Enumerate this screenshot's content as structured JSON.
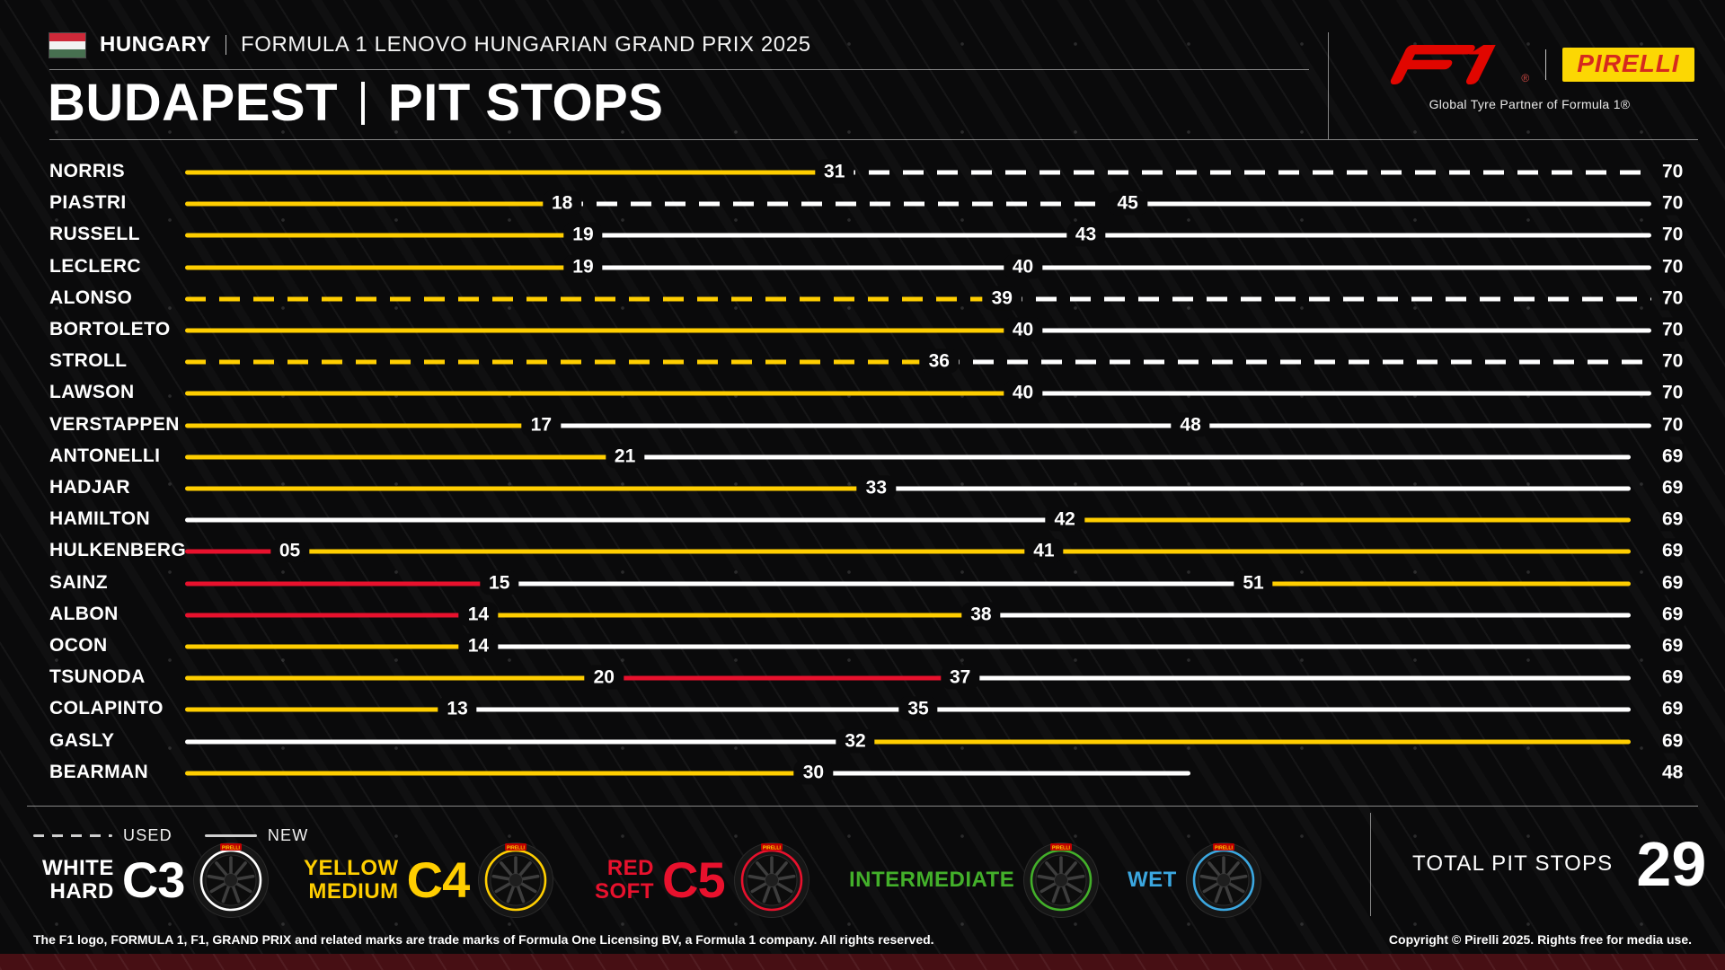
{
  "header": {
    "country": "HUNGARY",
    "event": "FORMULA 1 LENOVO HUNGARIAN GRAND PRIX 2025",
    "city": "BUDAPEST",
    "section": "PIT STOPS"
  },
  "branding": {
    "pirelli_logo": "PIRELLI",
    "partner_text": "Global Tyre Partner of Formula 1®"
  },
  "chart_data": {
    "type": "bar",
    "subtype": "horizontal-stint-timeline",
    "title": "BUDAPEST | PIT STOPS",
    "x_range": [
      0,
      70
    ],
    "legend": {
      "used": "USED",
      "new": "NEW"
    },
    "compound_colors": {
      "hard": "#ffffff",
      "medium": "#ffce00",
      "soft": "#e8112d",
      "intermediate": "#43b02a",
      "wet": "#3ba7e0"
    },
    "drivers": [
      {
        "name": "NORRIS",
        "end_label": "70",
        "stints": [
          {
            "from": 0,
            "to": 31,
            "compound": "medium",
            "condition": "new",
            "pit_label": "31"
          },
          {
            "from": 31,
            "to": 70,
            "compound": "hard",
            "condition": "used"
          }
        ]
      },
      {
        "name": "PIASTRI",
        "end_label": "70",
        "stints": [
          {
            "from": 0,
            "to": 18,
            "compound": "medium",
            "condition": "new",
            "pit_label": "18"
          },
          {
            "from": 18,
            "to": 45,
            "compound": "hard",
            "condition": "used",
            "pit_label": "45"
          },
          {
            "from": 45,
            "to": 70,
            "compound": "hard",
            "condition": "new"
          }
        ]
      },
      {
        "name": "RUSSELL",
        "end_label": "70",
        "stints": [
          {
            "from": 0,
            "to": 19,
            "compound": "medium",
            "condition": "new",
            "pit_label": "19"
          },
          {
            "from": 19,
            "to": 43,
            "compound": "hard",
            "condition": "new",
            "pit_label": "43"
          },
          {
            "from": 43,
            "to": 70,
            "compound": "hard",
            "condition": "new"
          }
        ]
      },
      {
        "name": "LECLERC",
        "end_label": "70",
        "stints": [
          {
            "from": 0,
            "to": 19,
            "compound": "medium",
            "condition": "new",
            "pit_label": "19"
          },
          {
            "from": 19,
            "to": 40,
            "compound": "hard",
            "condition": "new",
            "pit_label": "40"
          },
          {
            "from": 40,
            "to": 70,
            "compound": "hard",
            "condition": "new"
          }
        ]
      },
      {
        "name": "ALONSO",
        "end_label": "70",
        "stints": [
          {
            "from": 0,
            "to": 39,
            "compound": "medium",
            "condition": "used",
            "pit_label": "39"
          },
          {
            "from": 39,
            "to": 70,
            "compound": "hard",
            "condition": "used"
          }
        ]
      },
      {
        "name": "BORTOLETO",
        "end_label": "70",
        "stints": [
          {
            "from": 0,
            "to": 40,
            "compound": "medium",
            "condition": "new",
            "pit_label": "40"
          },
          {
            "from": 40,
            "to": 70,
            "compound": "hard",
            "condition": "new"
          }
        ]
      },
      {
        "name": "STROLL",
        "end_label": "70",
        "stints": [
          {
            "from": 0,
            "to": 36,
            "compound": "medium",
            "condition": "used",
            "pit_label": "36"
          },
          {
            "from": 36,
            "to": 70,
            "compound": "hard",
            "condition": "used"
          }
        ]
      },
      {
        "name": "LAWSON",
        "end_label": "70",
        "stints": [
          {
            "from": 0,
            "to": 40,
            "compound": "medium",
            "condition": "new",
            "pit_label": "40"
          },
          {
            "from": 40,
            "to": 70,
            "compound": "hard",
            "condition": "new"
          }
        ]
      },
      {
        "name": "VERSTAPPEN",
        "end_label": "70",
        "stints": [
          {
            "from": 0,
            "to": 17,
            "compound": "medium",
            "condition": "new",
            "pit_label": "17"
          },
          {
            "from": 17,
            "to": 48,
            "compound": "hard",
            "condition": "new",
            "pit_label": "48"
          },
          {
            "from": 48,
            "to": 70,
            "compound": "hard",
            "condition": "new"
          }
        ]
      },
      {
        "name": "ANTONELLI",
        "end_label": "69",
        "stints": [
          {
            "from": 0,
            "to": 21,
            "compound": "medium",
            "condition": "new",
            "pit_label": "21"
          },
          {
            "from": 21,
            "to": 69,
            "compound": "hard",
            "condition": "new"
          }
        ]
      },
      {
        "name": "HADJAR",
        "end_label": "69",
        "stints": [
          {
            "from": 0,
            "to": 33,
            "compound": "medium",
            "condition": "new",
            "pit_label": "33"
          },
          {
            "from": 33,
            "to": 69,
            "compound": "hard",
            "condition": "new"
          }
        ]
      },
      {
        "name": "HAMILTON",
        "end_label": "69",
        "stints": [
          {
            "from": 0,
            "to": 42,
            "compound": "hard",
            "condition": "new",
            "pit_label": "42"
          },
          {
            "from": 42,
            "to": 69,
            "compound": "medium",
            "condition": "new"
          }
        ]
      },
      {
        "name": "HULKENBERG",
        "end_label": "69",
        "stints": [
          {
            "from": 0,
            "to": 5,
            "compound": "soft",
            "condition": "new",
            "pit_label": "05"
          },
          {
            "from": 5,
            "to": 41,
            "compound": "medium",
            "condition": "new",
            "pit_label": "41"
          },
          {
            "from": 41,
            "to": 69,
            "compound": "medium",
            "condition": "new"
          }
        ]
      },
      {
        "name": "SAINZ",
        "end_label": "69",
        "stints": [
          {
            "from": 0,
            "to": 15,
            "compound": "soft",
            "condition": "new",
            "pit_label": "15"
          },
          {
            "from": 15,
            "to": 51,
            "compound": "hard",
            "condition": "new",
            "pit_label": "51"
          },
          {
            "from": 51,
            "to": 69,
            "compound": "medium",
            "condition": "new"
          }
        ]
      },
      {
        "name": "ALBON",
        "end_label": "69",
        "stints": [
          {
            "from": 0,
            "to": 14,
            "compound": "soft",
            "condition": "new",
            "pit_label": "14"
          },
          {
            "from": 14,
            "to": 38,
            "compound": "medium",
            "condition": "new",
            "pit_label": "38"
          },
          {
            "from": 38,
            "to": 69,
            "compound": "hard",
            "condition": "new"
          }
        ]
      },
      {
        "name": "OCON",
        "end_label": "69",
        "stints": [
          {
            "from": 0,
            "to": 14,
            "compound": "medium",
            "condition": "new",
            "pit_label": "14"
          },
          {
            "from": 14,
            "to": 69,
            "compound": "hard",
            "condition": "new"
          }
        ]
      },
      {
        "name": "TSUNODA",
        "end_label": "69",
        "stints": [
          {
            "from": 0,
            "to": 20,
            "compound": "medium",
            "condition": "new",
            "pit_label": "20"
          },
          {
            "from": 20,
            "to": 37,
            "compound": "soft",
            "condition": "new",
            "pit_label": "37"
          },
          {
            "from": 37,
            "to": 69,
            "compound": "hard",
            "condition": "new"
          }
        ]
      },
      {
        "name": "COLAPINTO",
        "end_label": "69",
        "stints": [
          {
            "from": 0,
            "to": 13,
            "compound": "medium",
            "condition": "new",
            "pit_label": "13"
          },
          {
            "from": 13,
            "to": 35,
            "compound": "hard",
            "condition": "new",
            "pit_label": "35"
          },
          {
            "from": 35,
            "to": 69,
            "compound": "hard",
            "condition": "new"
          }
        ]
      },
      {
        "name": "GASLY",
        "end_label": "69",
        "stints": [
          {
            "from": 0,
            "to": 32,
            "compound": "hard",
            "condition": "new",
            "pit_label": "32"
          },
          {
            "from": 32,
            "to": 69,
            "compound": "medium",
            "condition": "new"
          }
        ]
      },
      {
        "name": "BEARMAN",
        "end_label": "48",
        "stints": [
          {
            "from": 0,
            "to": 30,
            "compound": "medium",
            "condition": "new",
            "pit_label": "30"
          },
          {
            "from": 30,
            "to": 48,
            "compound": "hard",
            "condition": "new"
          }
        ]
      }
    ]
  },
  "tyre_legend": {
    "compounds": [
      {
        "line1": "WHITE",
        "line2": "HARD",
        "code": "C3",
        "key": "hard"
      },
      {
        "line1": "YELLOW",
        "line2": "MEDIUM",
        "code": "C4",
        "key": "medium"
      },
      {
        "line1": "RED",
        "line2": "SOFT",
        "code": "C5",
        "key": "soft"
      },
      {
        "line1": "INTERMEDIATE",
        "line2": "",
        "code": "",
        "key": "intermediate"
      },
      {
        "line1": "WET",
        "line2": "",
        "code": "",
        "key": "wet"
      }
    ],
    "total_label": "TOTAL PIT STOPS",
    "total_value": "29"
  },
  "footer": {
    "left": "The F1 logo, FORMULA 1, F1, GRAND PRIX and related marks are trade marks of Formula One Licensing BV, a Formula 1 company. All rights reserved.",
    "right": "Copyright © Pirelli 2025. Rights free for media use."
  }
}
